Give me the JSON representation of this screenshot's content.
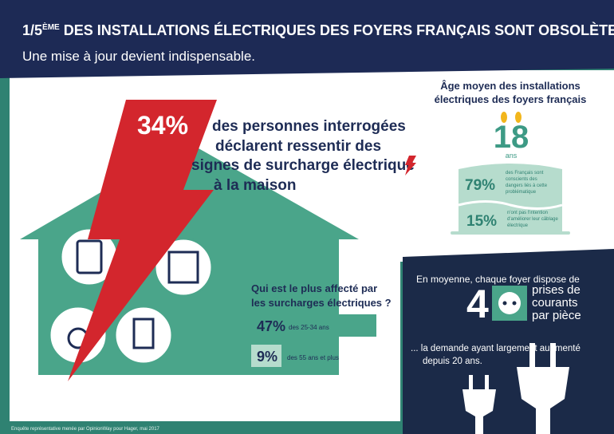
{
  "header": {
    "title_fraction": "1/5",
    "title_superscript": "ÈME",
    "title": " DES INSTALLATIONS ÉLECTRIQUES DES FOYERS FRANÇAIS SONT OBSOLÈTES",
    "subtitle": "Une mise à jour devient indispensable."
  },
  "main": {
    "stat": "34%",
    "statement_lines": [
      "des personnes interrogées",
      "déclarent ressentir des",
      "signes de surcharge électrique",
      "à la maison"
    ]
  },
  "affected": {
    "question_lines": [
      "Qui est le plus affecté par",
      "les surcharges électriques ?"
    ],
    "rows": [
      {
        "value": "47%",
        "label": "des 25-34 ans"
      },
      {
        "value": "9%",
        "label": "des 55 ans et plus"
      }
    ]
  },
  "age": {
    "title_lines": [
      "Âge moyen des installations",
      "électriques des foyers français"
    ],
    "value": "18",
    "unit": "ans",
    "facts": [
      {
        "value": "79%",
        "lines": [
          "des Français sont",
          "conscients des",
          "dangers liés à cette",
          "problématique"
        ]
      },
      {
        "value": "15%",
        "lines": [
          "n'ont pas l'intention",
          "d'améliorer leur câblage",
          "électrique"
        ]
      }
    ]
  },
  "outlets": {
    "intro": "En moyenne, chaque foyer dispose de",
    "number": "4",
    "label_lines": [
      "prises de",
      "courants",
      "par pièce"
    ],
    "note_lines": [
      "... la demande ayant largement augmenté",
      "depuis 20 ans."
    ]
  },
  "footnote": "Enquête représentative menée par OpinionWay pour Hager, mai 2017"
}
